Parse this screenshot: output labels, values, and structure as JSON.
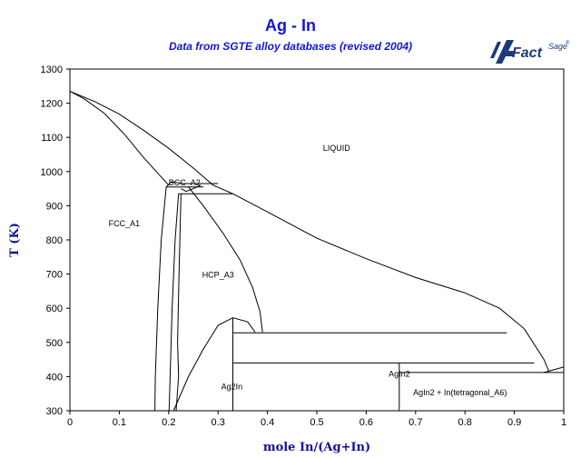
{
  "title": "Ag - In",
  "subtitle": "Data from SGTE alloy databases (revised 2004)",
  "logo": {
    "text_main": "Fact",
    "text_sup": "Sage",
    "trademark": "®"
  },
  "colors": {
    "title": "#1515d2",
    "axis_label": "#12129a",
    "logo": "#1c3a7a",
    "lines": "#000000"
  },
  "chart_data": {
    "type": "phase-diagram",
    "xlabel": "mole In/(Ag+In)",
    "ylabel": "T (K)",
    "xlim": [
      0,
      1
    ],
    "ylim": [
      300,
      1300
    ],
    "x_ticks": [
      "0",
      "0.1",
      "0.2",
      "0.3",
      "0.4",
      "0.5",
      "0.6",
      "0.7",
      "0.8",
      "0.9",
      "1"
    ],
    "y_ticks": [
      "300",
      "400",
      "500",
      "600",
      "700",
      "800",
      "900",
      "1000",
      "1100",
      "1200",
      "1300"
    ],
    "grid": false,
    "regions": [
      {
        "label": "LIQUID",
        "x": 0.54,
        "y": 1060
      },
      {
        "label": "FCC_A1",
        "x": 0.11,
        "y": 840
      },
      {
        "label": "BCC_A2",
        "x": 0.232,
        "y": 960
      },
      {
        "label": "HCP_A3",
        "x": 0.3,
        "y": 690
      },
      {
        "label": "Ag2In",
        "x": 0.328,
        "y": 362
      },
      {
        "label": "AgIn2",
        "x": 0.667,
        "y": 400
      },
      {
        "label": "AgIn2 + In(tetragonal_A6)",
        "x": 0.79,
        "y": 345
      }
    ],
    "curves": [
      {
        "name": "liquidus-upper",
        "points": [
          [
            0,
            1235
          ],
          [
            0.05,
            1205
          ],
          [
            0.1,
            1168
          ],
          [
            0.15,
            1120
          ],
          [
            0.2,
            1068
          ],
          [
            0.25,
            1010
          ],
          [
            0.29,
            960
          ],
          [
            0.33,
            935
          ],
          [
            0.4,
            882
          ],
          [
            0.5,
            805
          ],
          [
            0.6,
            745
          ],
          [
            0.7,
            690
          ],
          [
            0.8,
            645
          ],
          [
            0.87,
            600
          ],
          [
            0.92,
            540
          ],
          [
            0.96,
            450
          ],
          [
            0.97,
            415
          ]
        ]
      },
      {
        "name": "liquidus-lower",
        "points": [
          [
            0,
            1235
          ],
          [
            0.03,
            1212
          ],
          [
            0.07,
            1170
          ],
          [
            0.11,
            1110
          ],
          [
            0.15,
            1040
          ],
          [
            0.2,
            960
          ]
        ]
      },
      {
        "name": "peritectic-955",
        "points": [
          [
            0.195,
            955
          ],
          [
            0.27,
            955
          ]
        ]
      },
      {
        "name": "peritectic-965",
        "points": [
          [
            0.23,
            965
          ],
          [
            0.3,
            965
          ]
        ]
      },
      {
        "name": "peritectic-935",
        "points": [
          [
            0.22,
            935
          ],
          [
            0.33,
            935
          ]
        ]
      },
      {
        "name": "bcc-left",
        "points": [
          [
            0.195,
            955
          ],
          [
            0.205,
            970
          ],
          [
            0.23,
            965
          ]
        ]
      },
      {
        "name": "bcc-lower",
        "points": [
          [
            0.225,
            950
          ],
          [
            0.235,
            942
          ],
          [
            0.25,
            950
          ],
          [
            0.265,
            960
          ]
        ]
      },
      {
        "name": "fcc-solvus-left",
        "points": [
          [
            0.195,
            955
          ],
          [
            0.185,
            800
          ],
          [
            0.178,
            600
          ],
          [
            0.173,
            400
          ],
          [
            0.172,
            300
          ]
        ]
      },
      {
        "name": "fcc-solvus-right",
        "points": [
          [
            0.22,
            935
          ],
          [
            0.213,
            800
          ],
          [
            0.207,
            600
          ],
          [
            0.203,
            400
          ],
          [
            0.201,
            300
          ]
        ]
      },
      {
        "name": "hcp-left",
        "points": [
          [
            0.225,
            935
          ],
          [
            0.221,
            700
          ],
          [
            0.218,
            500
          ],
          [
            0.22,
            400
          ],
          [
            0.215,
            300
          ]
        ]
      },
      {
        "name": "hcp-liquidus",
        "points": [
          [
            0.24,
            955
          ],
          [
            0.27,
            900
          ],
          [
            0.31,
            820
          ],
          [
            0.345,
            740
          ],
          [
            0.37,
            660
          ],
          [
            0.385,
            590
          ],
          [
            0.39,
            530
          ]
        ]
      },
      {
        "name": "hcp-dome",
        "points": [
          [
            0.21,
            300
          ],
          [
            0.24,
            400
          ],
          [
            0.27,
            480
          ],
          [
            0.3,
            550
          ],
          [
            0.33,
            572
          ],
          [
            0.36,
            560
          ],
          [
            0.375,
            530
          ]
        ]
      },
      {
        "name": "ag2in-line",
        "points": [
          [
            0.33,
            300
          ],
          [
            0.33,
            572
          ]
        ]
      },
      {
        "name": "eutectic-528",
        "points": [
          [
            0.33,
            528
          ],
          [
            0.885,
            528
          ]
        ]
      },
      {
        "name": "peritectic-440",
        "points": [
          [
            0.33,
            440
          ],
          [
            0.94,
            440
          ]
        ]
      },
      {
        "name": "agin2-line",
        "points": [
          [
            0.667,
            300
          ],
          [
            0.667,
            440
          ]
        ]
      },
      {
        "name": "eutectic-412",
        "points": [
          [
            0.667,
            412
          ],
          [
            1.0,
            412
          ]
        ]
      },
      {
        "name": "in-side",
        "points": [
          [
            0.96,
            412
          ],
          [
            0.98,
            420
          ],
          [
            1.0,
            428
          ]
        ]
      }
    ]
  }
}
